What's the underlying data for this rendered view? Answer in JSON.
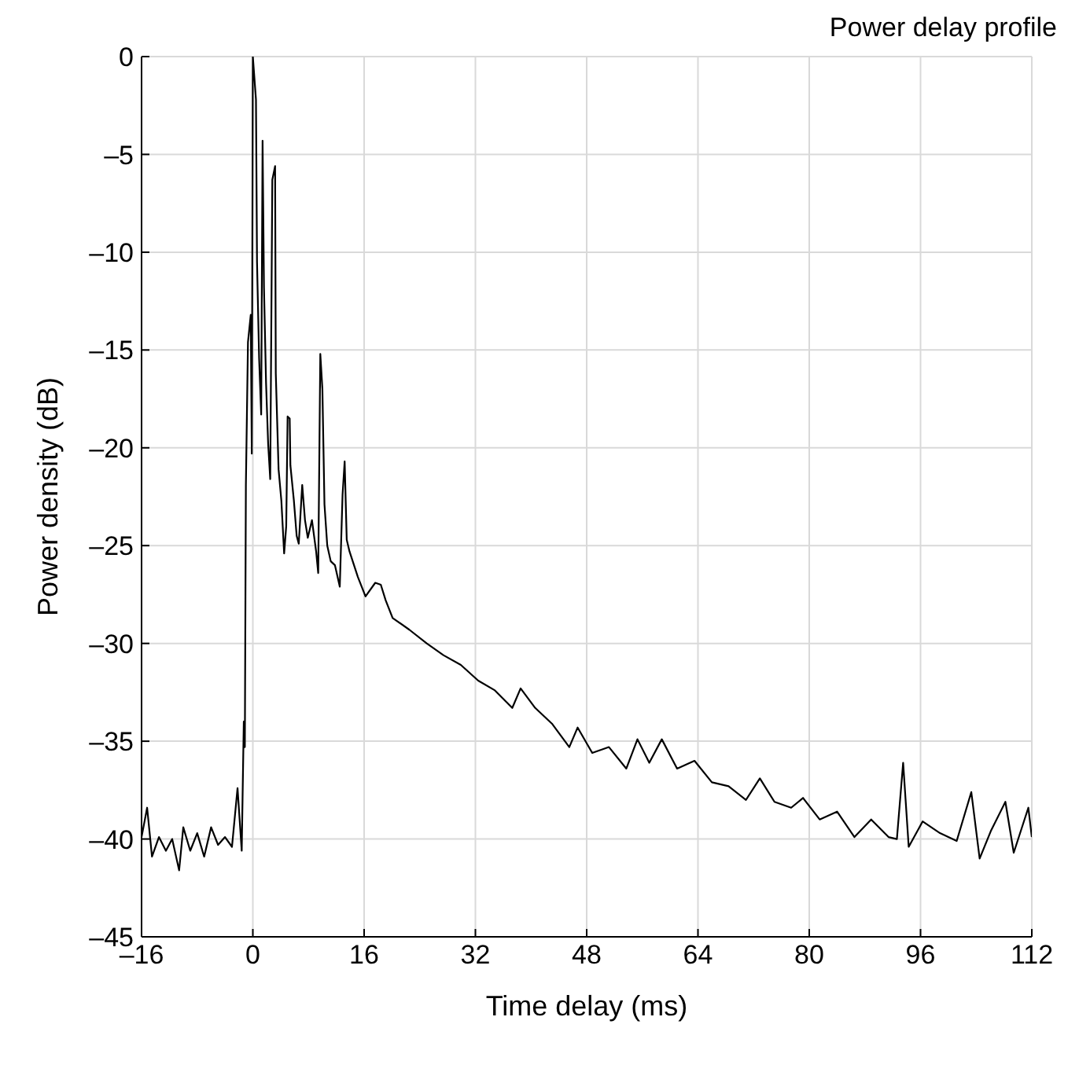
{
  "chart_data": {
    "type": "line",
    "title": "Power delay profile",
    "xlabel": "Time delay  (ms)",
    "ylabel": "Power density  (dB)",
    "x": [
      -16,
      -15.2,
      -14.5,
      -13.5,
      -12.5,
      -11.6,
      -10.6,
      -10,
      -9,
      -8,
      -7,
      -6,
      -5,
      -4,
      -3,
      -2.2,
      -1.6,
      -1.3,
      -1.15,
      -1,
      -0.7,
      -0.3,
      -0.15,
      0,
      0.45,
      0.6,
      0.9,
      1.2,
      1.4,
      1.6,
      1.9,
      2.2,
      2.5,
      2.8,
      3.2,
      3.3,
      3.7,
      4.1,
      4.5,
      4.8,
      5,
      5.3,
      5.4,
      5.9,
      6.3,
      6.6,
      7.1,
      7.5,
      7.9,
      8.5,
      9.1,
      9.4,
      9.7,
      10,
      10.3,
      10.7,
      11.2,
      11.8,
      12.5,
      12.9,
      13.2,
      13.5,
      13.9,
      15.1,
      16.2,
      17.6,
      18.4,
      19.1,
      20.1,
      22.5,
      25,
      27.4,
      29.9,
      32.4,
      34.8,
      37.3,
      38.5,
      40.6,
      43,
      45.5,
      46.7,
      48.8,
      51.2,
      53.7,
      55.3,
      57,
      58.8,
      61,
      63.5,
      66,
      68.4,
      70.9,
      72.9,
      75,
      77.4,
      79.1,
      81.5,
      84,
      86.5,
      88.9,
      91.4,
      92.6,
      93.5,
      94.3,
      96.3,
      98.8,
      101.2,
      103.3,
      104.5,
      106.1,
      108.2,
      109.4,
      111.5,
      112
    ],
    "series": [
      {
        "color": "#000000",
        "values": [
          -39.9,
          -38.4,
          -40.9,
          -39.9,
          -40.6,
          -40.0,
          -41.6,
          -39.4,
          -40.6,
          -39.7,
          -40.9,
          -39.4,
          -40.3,
          -39.9,
          -40.4,
          -37.4,
          -40.6,
          -34.0,
          -35.3,
          -21.9,
          -14.6,
          -13.2,
          -20.3,
          0,
          -2.2,
          -10.5,
          -15.4,
          -18.3,
          -4.3,
          -11.8,
          -16.7,
          -19.8,
          -21.6,
          -6.3,
          -5.6,
          -16.2,
          -21.1,
          -22.7,
          -25.4,
          -24.0,
          -18.4,
          -18.5,
          -20.9,
          -22.7,
          -24.5,
          -24.9,
          -21.9,
          -23.7,
          -24.6,
          -23.7,
          -25.3,
          -26.4,
          -15.2,
          -17.0,
          -22.9,
          -25.0,
          -25.8,
          -26.0,
          -27.1,
          -22.4,
          -20.7,
          -24.7,
          -25.3,
          -26.6,
          -27.6,
          -26.9,
          -27.0,
          -27.8,
          -28.7,
          -29.3,
          -30,
          -30.6,
          -31.1,
          -31.9,
          -32.4,
          -33.3,
          -32.3,
          -33.3,
          -34.1,
          -35.3,
          -34.3,
          -35.6,
          -35.3,
          -36.4,
          -34.9,
          -36.1,
          -34.9,
          -36.4,
          -36,
          -37.1,
          -37.3,
          -38,
          -36.9,
          -38.1,
          -38.4,
          -37.9,
          -39,
          -38.6,
          -39.9,
          -39,
          -39.9,
          -40,
          -36.1,
          -40.4,
          -39.1,
          -39.7,
          -40.1,
          -37.6,
          -41,
          -39.6,
          -38.1,
          -40.7,
          -38.4,
          -39.9
        ]
      }
    ],
    "xlim": [
      -16,
      112
    ],
    "xticks": [
      {
        "value": -16,
        "label": "–16"
      },
      0,
      16,
      32,
      48,
      64,
      80,
      96,
      112
    ],
    "ylim": [
      -45,
      0
    ],
    "yticks": [
      {
        "value": -45,
        "label": "–45"
      },
      {
        "value": -40,
        "label": "–40"
      },
      {
        "value": -35,
        "label": "–35"
      },
      {
        "value": -30,
        "label": "–30"
      },
      {
        "value": -25,
        "label": "–25"
      },
      {
        "value": -20,
        "label": "–20"
      },
      {
        "value": -15,
        "label": "–15"
      },
      {
        "value": -10,
        "label": "–10"
      },
      {
        "value": -5,
        "label": "–5"
      },
      0
    ],
    "grid": true,
    "legend": false,
    "marker": "none",
    "line_style": "solid"
  }
}
